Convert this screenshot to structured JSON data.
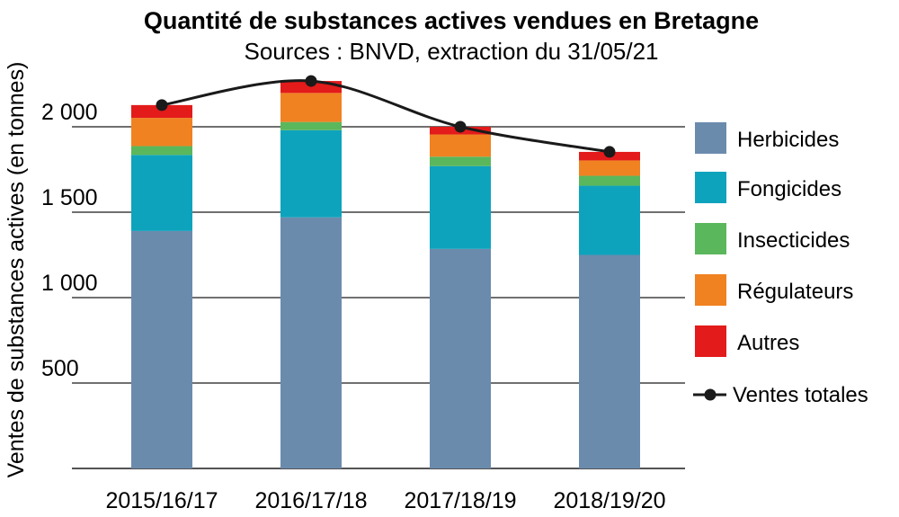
{
  "chart_data": {
    "type": "bar",
    "stacked": true,
    "title": "Quantité de substances actives vendues en Bretagne",
    "subtitle": "Sources : BNVD, extraction du 31/05/21",
    "ylabel": "Ventes de substances actives (en tonnes)",
    "xlabel": "",
    "ylim": [
      0,
      2200
    ],
    "yticks": [
      500,
      1000,
      1500,
      2000
    ],
    "ytick_labels": [
      "500",
      "1 000",
      "1 500",
      "2 000"
    ],
    "grid": true,
    "legend_position": "right",
    "categories": [
      "2015/16/17",
      "2016/17/18",
      "2017/18/19",
      "2018/19/20"
    ],
    "series": [
      {
        "name": "Herbicides",
        "color": "#6b8bad",
        "values": [
          1390,
          1470,
          1285,
          1250
        ]
      },
      {
        "name": "Fongicides",
        "color": "#0ea3bd",
        "values": [
          445,
          510,
          485,
          405
        ]
      },
      {
        "name": "Insecticides",
        "color": "#5bb75b",
        "values": [
          52,
          48,
          55,
          58
        ]
      },
      {
        "name": "Régulateurs",
        "color": "#f08222",
        "values": [
          165,
          170,
          130,
          90
        ]
      },
      {
        "name": "Autres",
        "color": "#e31b1b",
        "values": [
          75,
          70,
          45,
          50
        ]
      }
    ],
    "line": {
      "name": "Ventes totales",
      "color": "#1a1a1a",
      "values": [
        2127,
        2268,
        2000,
        1853
      ]
    }
  }
}
